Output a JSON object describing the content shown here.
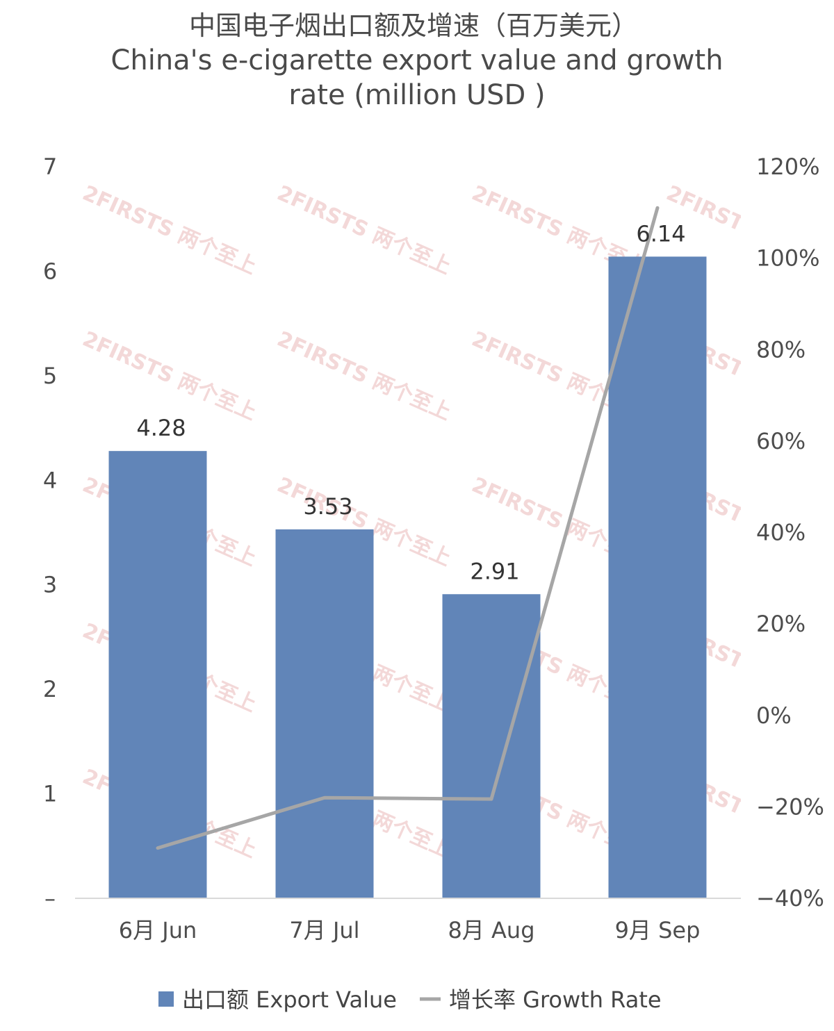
{
  "chart_data": {
    "type": "bar",
    "title_lines": [
      "中国电子烟出口额及增速（百万美元）",
      "China's e-cigarette export value and growth",
      "rate (million USD )"
    ],
    "categories": [
      "6月 Jun",
      "7月 Jul",
      "8月 Aug",
      "9月 Sep"
    ],
    "series": [
      {
        "name": "出口额 Export Value",
        "type": "bar",
        "axis": "left",
        "values": [
          4.28,
          3.53,
          2.91,
          6.14
        ],
        "color": "#6185b8"
      },
      {
        "name": "增长率 Growth Rate",
        "type": "line",
        "axis": "right",
        "values": [
          -29,
          -18,
          -18.3,
          111
        ],
        "color": "#a6a6a6"
      }
    ],
    "data_labels": [
      "4.28",
      "3.53",
      "2.91",
      "6.14"
    ],
    "left_axis": {
      "ylim": [
        0,
        7
      ],
      "ticks": [
        "–",
        "1",
        "2",
        "3",
        "4",
        "5",
        "6",
        "7"
      ]
    },
    "right_axis": {
      "ylim": [
        -40,
        120
      ],
      "ticks": [
        "−40%",
        "−20%",
        "0%",
        "20%",
        "40%",
        "60%",
        "80%",
        "100%",
        "120%"
      ]
    },
    "legend_position": "bottom",
    "watermark": "2FIRSTS 两个至上",
    "grid": false
  }
}
